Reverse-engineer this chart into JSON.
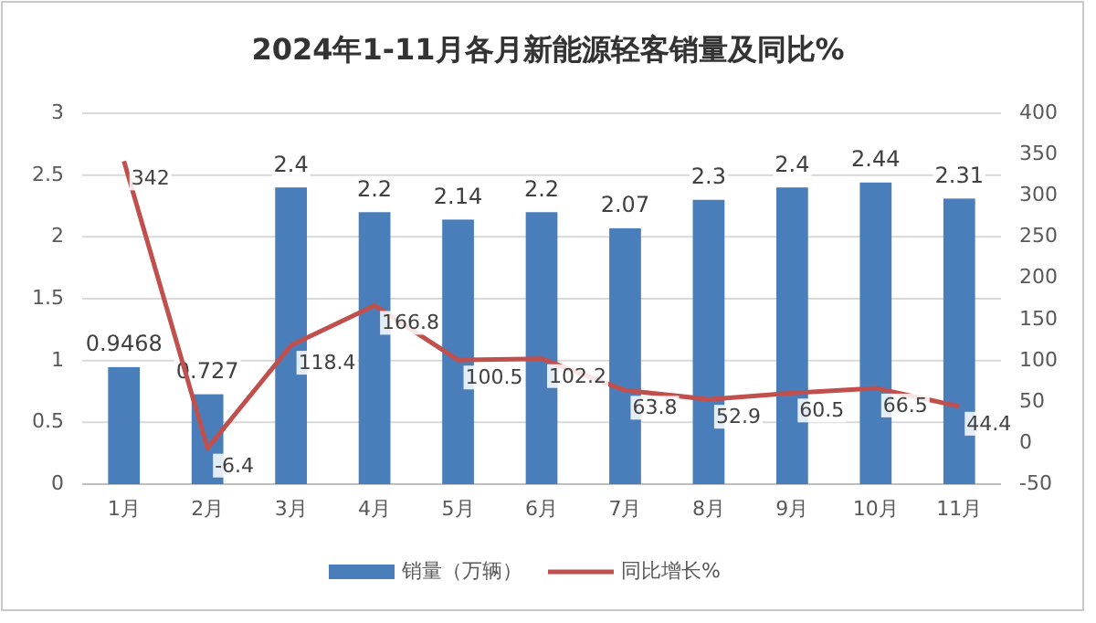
{
  "chart_data": {
    "type": "bar",
    "title": "2024年1-11月各月新能源轻客销量及同比%",
    "categories": [
      "1月",
      "2月",
      "3月",
      "4月",
      "5月",
      "6月",
      "7月",
      "8月",
      "9月",
      "10月",
      "11月"
    ],
    "series": [
      {
        "name": "销量（万辆）",
        "color": "#4a7ebb",
        "values": [
          0.9468,
          0.727,
          2.4,
          2.2,
          2.14,
          2.2,
          2.07,
          2.3,
          2.4,
          2.44,
          2.31
        ]
      },
      {
        "name": "同比增长%",
        "type": "line",
        "axis": "y2",
        "color": "#c0504d",
        "values": [
          342,
          -6.4,
          118.4,
          166.8,
          100.5,
          102.2,
          63.8,
          52.9,
          60.5,
          66.5,
          44.4
        ]
      }
    ],
    "ylim": [
      0,
      3
    ],
    "yticks": [
      0,
      0.5,
      1,
      1.5,
      2,
      2.5,
      3
    ],
    "y2lim": [
      -50,
      400
    ],
    "y2ticks": [
      -50,
      0,
      50,
      100,
      150,
      200,
      250,
      300,
      350,
      400
    ],
    "grid": "y",
    "legend": "bottom",
    "data_labels": true,
    "marker": "none",
    "line_style": "solid"
  }
}
